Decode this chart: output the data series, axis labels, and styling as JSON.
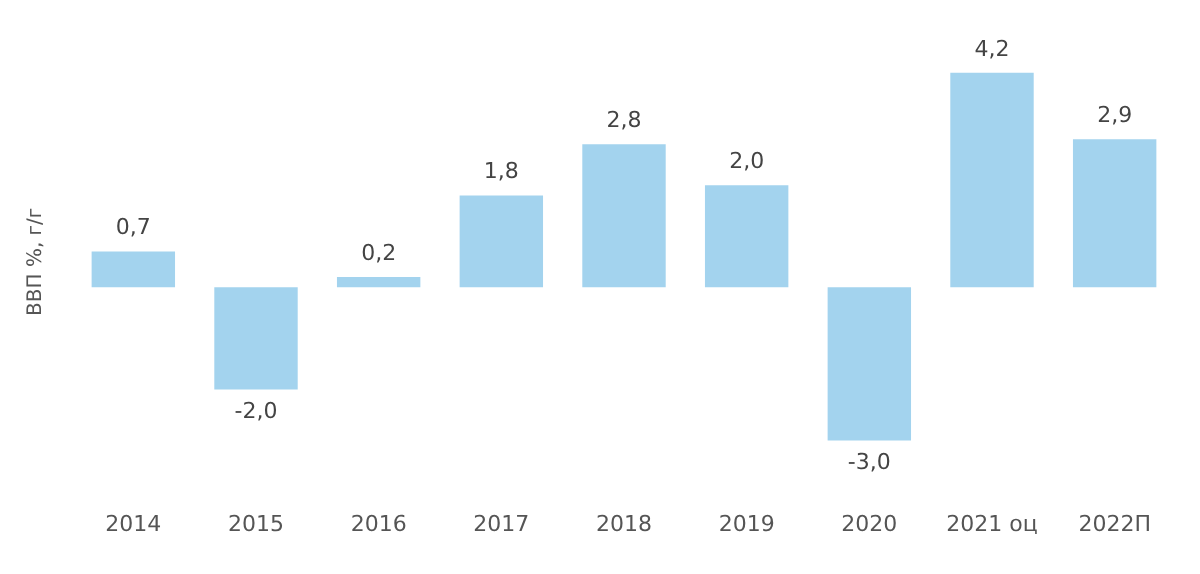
{
  "chart_data": {
    "type": "bar",
    "ylabel": "ВВП %, г/г",
    "categories": [
      "2014",
      "2015",
      "2016",
      "2017",
      "2018",
      "2019",
      "2020",
      "2021 оц",
      "2022П"
    ],
    "values": [
      0.7,
      -2.0,
      0.2,
      1.8,
      2.8,
      2.0,
      -3.0,
      4.2,
      2.9
    ],
    "value_labels": [
      "0,7",
      "-2,0",
      "0,2",
      "1,8",
      "2,8",
      "2,0",
      "-3,0",
      "4,2",
      "2,9"
    ],
    "color": "#a3d3ee",
    "grid": false,
    "legend": false
  }
}
